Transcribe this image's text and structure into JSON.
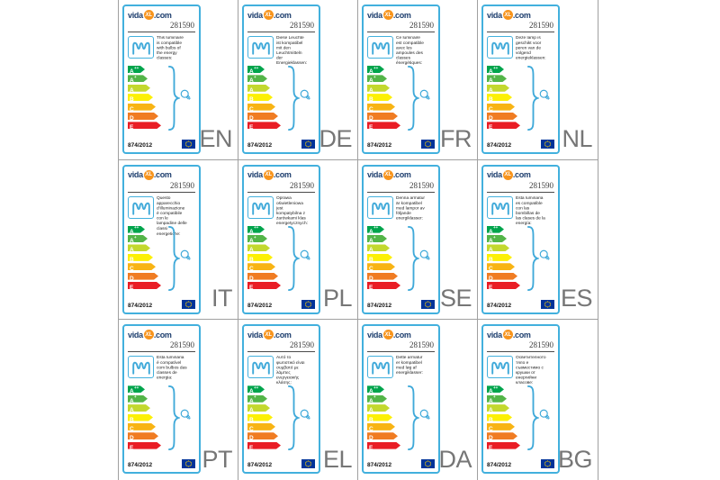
{
  "brand": {
    "logo_vida": "vida",
    "logo_xl": "XL",
    "logo_com": ".com"
  },
  "product_number": "281590",
  "regulation": "874/2012",
  "energy_classes": [
    {
      "class": "A",
      "sup": "++",
      "color": "#00a44c"
    },
    {
      "class": "A",
      "sup": "+",
      "color": "#53b548"
    },
    {
      "class": "A",
      "sup": "",
      "color": "#c3d82e"
    },
    {
      "class": "B",
      "sup": "",
      "color": "#fcf005"
    },
    {
      "class": "C",
      "sup": "",
      "color": "#f8b414"
    },
    {
      "class": "D",
      "sup": "",
      "color": "#f07c22"
    },
    {
      "class": "E",
      "sup": "",
      "color": "#e91d25"
    }
  ],
  "labels": [
    {
      "lang": "EN",
      "description": "This luminaire is compatible with bulbs of the energy classes:"
    },
    {
      "lang": "DE",
      "description": "Diese Leuchte ist kompatibel mit den Leuchtmitteln der Energieklassen:"
    },
    {
      "lang": "FR",
      "description": "Ce luminaire est compatible avec les ampoules des classes énergétiques:"
    },
    {
      "lang": "NL",
      "description": "Deze lamp is geschikt voor peren van de volgend energieklassen:"
    },
    {
      "lang": "IT",
      "description": "Questo apparecchio d'illuminazione è compatibile con le lampadine delle classi energetiche:"
    },
    {
      "lang": "PL",
      "description": "Oprawa oświetleniowa jest kompatybilna z żarówkami klas energetycznych:"
    },
    {
      "lang": "SE",
      "description": "Denna armatur är kompatibel med lampor av följande energiklasser:"
    },
    {
      "lang": "ES",
      "description": "Esta luminaria es compatible con las bombillas de las clases de la energía:"
    },
    {
      "lang": "PT",
      "description": "Esta luminária é compatível com bulbos das classes de energia:"
    },
    {
      "lang": "EL",
      "description": "Αυτό το φωτιστικό είναι συμβατό με λάμπες ενεργειακής κλάσης:"
    },
    {
      "lang": "DA",
      "description": "Dette armatur er kompatibel med løg af energiklasser:"
    },
    {
      "lang": "BG",
      "description": "Осветителното тяло е съвместимо с крушки от енергийни класове:"
    }
  ],
  "colors": {
    "accent_cyan": "#3fa9d9",
    "card_border": "#42b0dd",
    "logo_navy": "#1d3e6e",
    "logo_orange": "#f7941d",
    "eu_flag_blue": "#003399",
    "eu_flag_stars": "#ffcc00",
    "language_code_gray": "#767676",
    "grid_line": "#a0a0a0"
  },
  "icons": {
    "luminaire": "wave-luminaire-icon",
    "brace": "curly-brace",
    "bulb": "light-bulb-icon",
    "flag": "eu-flag-icon"
  }
}
